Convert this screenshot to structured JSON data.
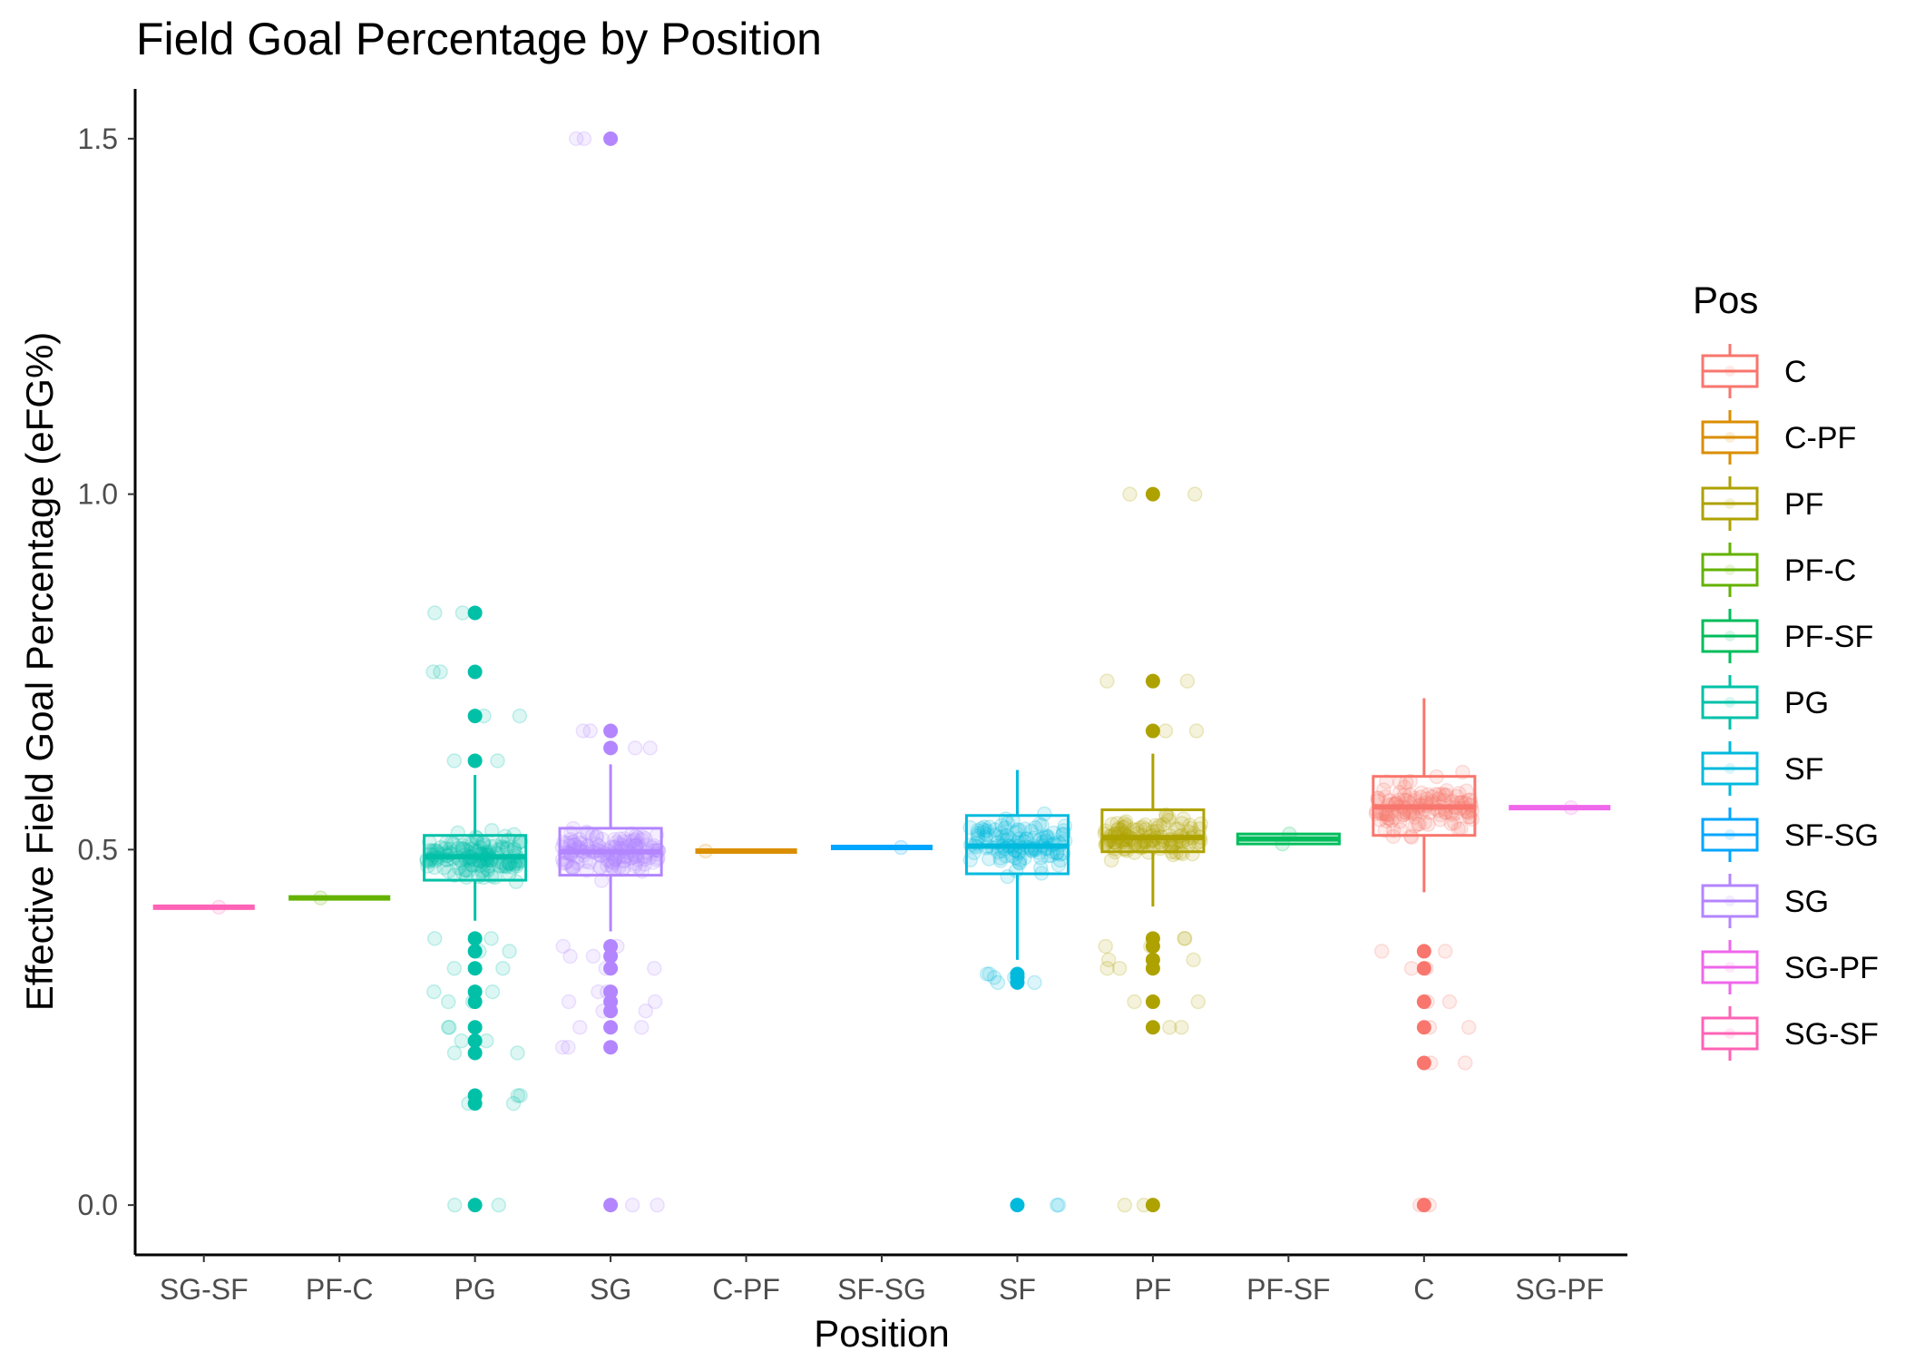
{
  "chart_data": {
    "type": "box",
    "title": "Field Goal Percentage by Position",
    "xlabel": "Position",
    "ylabel": "Effective Field Goal Percentage (eFG%)",
    "ylim": [
      -0.07,
      1.57
    ],
    "yticks": [
      0.0,
      0.5,
      1.0,
      1.5
    ],
    "ytick_labels": [
      "0.0",
      "0.5",
      "1.0",
      "1.5"
    ],
    "grid": false,
    "legend": {
      "title": "Pos",
      "placement": "right",
      "entries": [
        "C",
        "C-PF",
        "PF",
        "PF-C",
        "PF-SF",
        "PG",
        "SF",
        "SF-SG",
        "SG",
        "SG-PF",
        "SG-SF"
      ]
    },
    "colors": {
      "C": "#F8766D",
      "C-PF": "#DB8E00",
      "PF": "#AEA200",
      "PF-C": "#64B200",
      "PF-SF": "#00BD5C",
      "PG": "#00C1A7",
      "SF": "#00BADE",
      "SF-SG": "#00A6FF",
      "SG": "#B385FF",
      "SG-PF": "#EF67EB",
      "SG-SF": "#FF63B6"
    },
    "categories": [
      "SG-SF",
      "PF-C",
      "PG",
      "SG",
      "C-PF",
      "SF-SG",
      "SF",
      "PF",
      "PF-SF",
      "C",
      "SG-PF"
    ],
    "boxes": [
      {
        "pos": "SG-SF",
        "min": 0.419,
        "q1": 0.419,
        "median": 0.419,
        "q3": 0.419,
        "max": 0.419,
        "outliers": [],
        "jitter": [
          0.419
        ]
      },
      {
        "pos": "PF-C",
        "min": 0.432,
        "q1": 0.432,
        "median": 0.432,
        "q3": 0.432,
        "max": 0.432,
        "outliers": [],
        "jitter": [
          0.432
        ]
      },
      {
        "pos": "PG",
        "min": 0.4,
        "q1": 0.457,
        "median": 0.49,
        "q3": 0.52,
        "max": 0.605,
        "outliers": [
          0.833,
          0.75,
          0.688,
          0.625,
          0.375,
          0.357,
          0.333,
          0.3,
          0.286,
          0.25,
          0.231,
          0.214,
          0.154,
          0.143,
          0.0
        ]
      },
      {
        "pos": "SG",
        "min": 0.385,
        "q1": 0.464,
        "median": 0.497,
        "q3": 0.53,
        "max": 0.62,
        "outliers": [
          1.5,
          0.667,
          0.643,
          0.364,
          0.35,
          0.333,
          0.3,
          0.286,
          0.273,
          0.25,
          0.222,
          0.0
        ]
      },
      {
        "pos": "C-PF",
        "min": 0.498,
        "q1": 0.498,
        "median": 0.498,
        "q3": 0.498,
        "max": 0.498,
        "outliers": [],
        "jitter": [
          0.498
        ]
      },
      {
        "pos": "SF-SG",
        "min": 0.503,
        "q1": 0.503,
        "median": 0.503,
        "q3": 0.503,
        "max": 0.503,
        "outliers": [],
        "jitter": [
          0.503
        ]
      },
      {
        "pos": "SF",
        "min": 0.345,
        "q1": 0.466,
        "median": 0.505,
        "q3": 0.548,
        "max": 0.612,
        "outliers": [
          0.325,
          0.32,
          0.313,
          0.0
        ]
      },
      {
        "pos": "PF",
        "min": 0.42,
        "q1": 0.497,
        "median": 0.517,
        "q3": 0.556,
        "max": 0.635,
        "outliers": [
          1.0,
          0.737,
          0.667,
          0.375,
          0.364,
          0.345,
          0.333,
          0.286,
          0.25,
          0.0
        ]
      },
      {
        "pos": "PF-SF",
        "min": 0.508,
        "q1": 0.508,
        "median": 0.515,
        "q3": 0.522,
        "max": 0.522,
        "outliers": [],
        "jitter": [
          0.508,
          0.522
        ]
      },
      {
        "pos": "C",
        "min": 0.44,
        "q1": 0.52,
        "median": 0.56,
        "q3": 0.603,
        "max": 0.713,
        "outliers": [
          0.357,
          0.333,
          0.286,
          0.25,
          0.2,
          0.0
        ]
      },
      {
        "pos": "SG-PF",
        "min": 0.559,
        "q1": 0.559,
        "median": 0.559,
        "q3": 0.559,
        "max": 0.559,
        "outliers": [],
        "jitter": [
          0.559
        ]
      }
    ]
  }
}
